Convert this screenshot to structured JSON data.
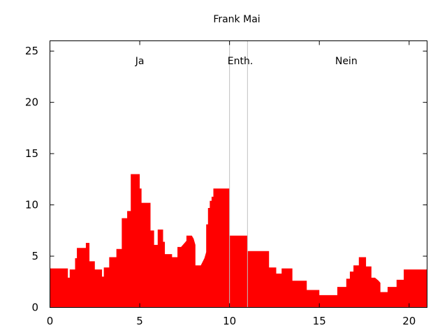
{
  "chart_data": {
    "type": "area",
    "title": "Frank Mai",
    "xlabel": "",
    "ylabel": "",
    "xlim": [
      0,
      21
    ],
    "ylim": [
      0,
      26
    ],
    "xticks": [
      0,
      5,
      10,
      15,
      20
    ],
    "yticks": [
      0,
      5,
      10,
      15,
      20,
      25
    ],
    "grid": false,
    "colors": {
      "fill": "#ff0000",
      "divider": "#c0c0c0",
      "axis": "#000000"
    },
    "dividers": [
      10,
      11
    ],
    "regions": [
      {
        "label": "Ja",
        "x": 5
      },
      {
        "label": "Enth.",
        "x": 10.6
      },
      {
        "label": "Nein",
        "x": 16.5
      }
    ],
    "series": [
      {
        "values": [
          [
            0,
            3.8
          ],
          [
            1.0,
            3.8
          ],
          [
            1.0,
            2.9
          ],
          [
            1.1,
            2.9
          ],
          [
            1.1,
            3.7
          ],
          [
            1.4,
            3.7
          ],
          [
            1.4,
            4.8
          ],
          [
            1.5,
            4.8
          ],
          [
            1.5,
            5.8
          ],
          [
            2.0,
            5.8
          ],
          [
            2.0,
            6.3
          ],
          [
            2.2,
            6.3
          ],
          [
            2.2,
            4.5
          ],
          [
            2.5,
            4.5
          ],
          [
            2.5,
            3.7
          ],
          [
            2.9,
            3.7
          ],
          [
            2.9,
            3.0
          ],
          [
            3.0,
            3.0
          ],
          [
            3.0,
            3.9
          ],
          [
            3.3,
            3.9
          ],
          [
            3.3,
            4.9
          ],
          [
            3.7,
            4.9
          ],
          [
            3.7,
            5.7
          ],
          [
            4.0,
            5.7
          ],
          [
            4.0,
            8.7
          ],
          [
            4.3,
            8.7
          ],
          [
            4.3,
            9.4
          ],
          [
            4.5,
            9.4
          ],
          [
            4.5,
            13.0
          ],
          [
            5.0,
            13.0
          ],
          [
            5.0,
            11.6
          ],
          [
            5.1,
            11.6
          ],
          [
            5.1,
            10.2
          ],
          [
            5.6,
            10.2
          ],
          [
            5.6,
            7.5
          ],
          [
            5.8,
            7.5
          ],
          [
            5.8,
            6.1
          ],
          [
            6.0,
            6.1
          ],
          [
            6.0,
            7.6
          ],
          [
            6.3,
            7.6
          ],
          [
            6.3,
            6.4
          ],
          [
            6.4,
            6.4
          ],
          [
            6.4,
            5.2
          ],
          [
            6.8,
            5.2
          ],
          [
            6.8,
            4.9
          ],
          [
            7.1,
            4.9
          ],
          [
            7.1,
            5.9
          ],
          [
            7.3,
            5.9
          ],
          [
            7.5,
            6.3
          ],
          [
            7.6,
            6.5
          ],
          [
            7.6,
            7.0
          ],
          [
            7.9,
            7.0
          ],
          [
            8.0,
            6.7
          ],
          [
            8.1,
            6.1
          ],
          [
            8.1,
            4.1
          ],
          [
            8.4,
            4.1
          ],
          [
            8.6,
            4.8
          ],
          [
            8.7,
            5.4
          ],
          [
            8.7,
            8.1
          ],
          [
            8.8,
            8.1
          ],
          [
            8.8,
            9.7
          ],
          [
            8.9,
            9.7
          ],
          [
            8.9,
            10.4
          ],
          [
            9.0,
            10.4
          ],
          [
            9.0,
            10.8
          ],
          [
            9.1,
            10.8
          ],
          [
            9.1,
            11.6
          ],
          [
            10.0,
            11.6
          ],
          [
            10.0,
            7.0
          ],
          [
            11.0,
            7.0
          ],
          [
            11.0,
            5.5
          ],
          [
            12.2,
            5.5
          ],
          [
            12.2,
            3.9
          ],
          [
            12.6,
            3.9
          ],
          [
            12.6,
            3.3
          ],
          [
            12.9,
            3.3
          ],
          [
            12.9,
            3.8
          ],
          [
            13.5,
            3.8
          ],
          [
            13.5,
            2.6
          ],
          [
            14.3,
            2.6
          ],
          [
            14.3,
            1.7
          ],
          [
            15.0,
            1.7
          ],
          [
            15.0,
            1.2
          ],
          [
            16.0,
            1.2
          ],
          [
            16.0,
            2.0
          ],
          [
            16.5,
            2.0
          ],
          [
            16.5,
            2.8
          ],
          [
            16.7,
            2.8
          ],
          [
            16.7,
            3.5
          ],
          [
            16.9,
            3.5
          ],
          [
            16.9,
            4.1
          ],
          [
            17.2,
            4.1
          ],
          [
            17.2,
            4.9
          ],
          [
            17.6,
            4.9
          ],
          [
            17.6,
            4.0
          ],
          [
            17.9,
            4.0
          ],
          [
            17.9,
            2.9
          ],
          [
            18.1,
            2.9
          ],
          [
            18.3,
            2.6
          ],
          [
            18.4,
            2.4
          ],
          [
            18.4,
            1.5
          ],
          [
            18.8,
            1.5
          ],
          [
            18.8,
            2.0
          ],
          [
            19.3,
            2.0
          ],
          [
            19.3,
            2.7
          ],
          [
            19.7,
            2.7
          ],
          [
            19.7,
            3.7
          ],
          [
            21.0,
            3.7
          ]
        ]
      }
    ]
  }
}
